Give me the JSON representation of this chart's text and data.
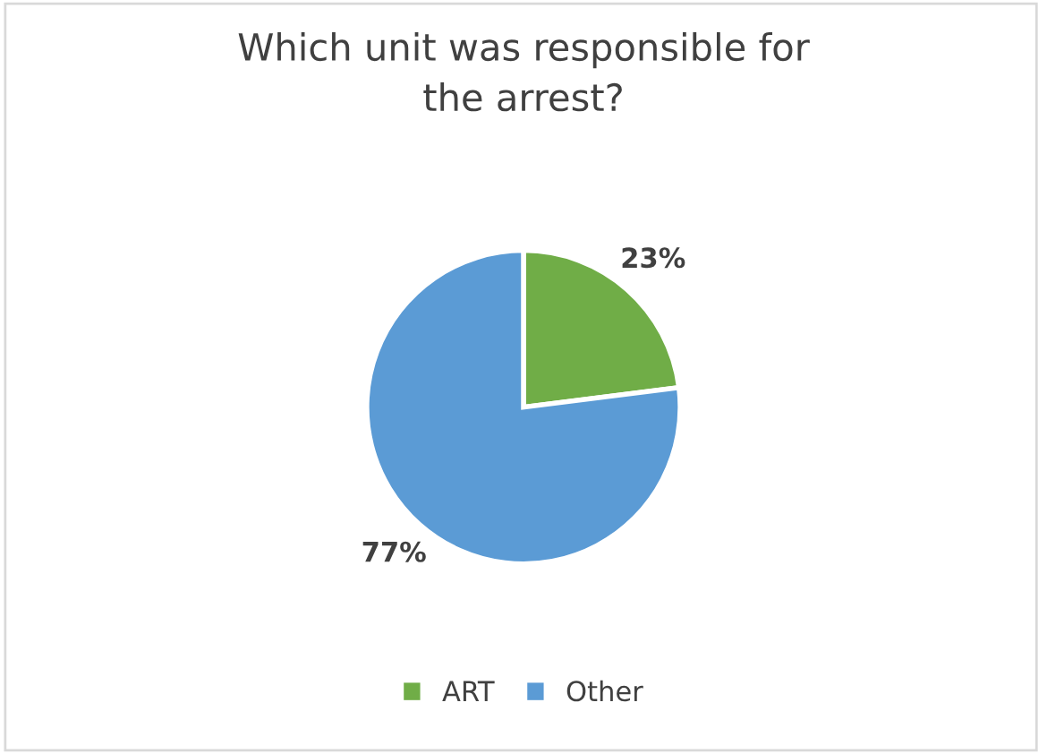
{
  "chart_data": {
    "type": "pie",
    "title": "Which unit was responsible for\nthe arrest?",
    "categories": [
      "ART",
      "Other"
    ],
    "values": [
      23,
      77
    ],
    "colors": [
      "#70ad47",
      "#5b9bd5"
    ],
    "value_labels": [
      "23%",
      "77%"
    ],
    "legend": "bottom"
  }
}
